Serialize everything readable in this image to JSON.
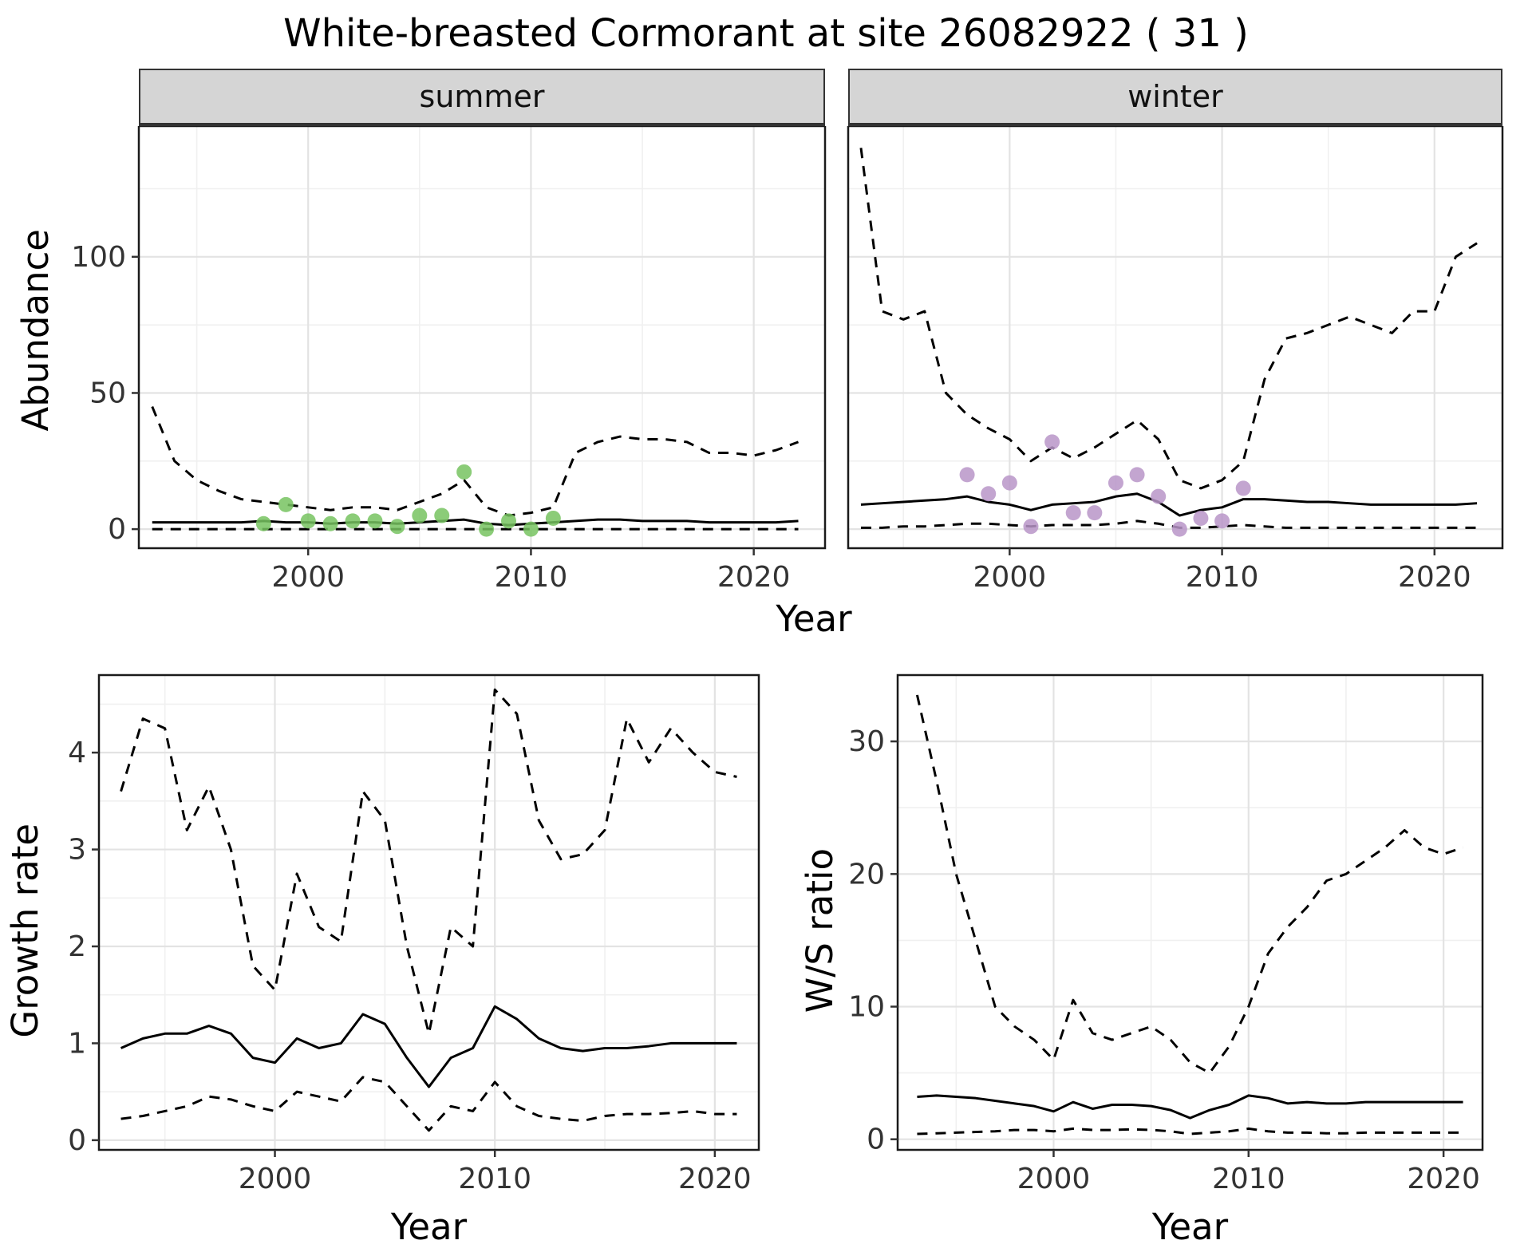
{
  "title": "White-breasted Cormorant at site 26082922 ( 31 )",
  "top": {
    "ylab": "Abundance",
    "xlab": "Year"
  },
  "colors": {
    "summer_points": "#77c360",
    "winter_points": "#b895c8",
    "line": "#000000",
    "strip_bg": "#d5d5d5"
  },
  "chart_data": [
    {
      "id": "summer",
      "type": "line",
      "facet_label": "summer",
      "xlabel": "Year",
      "ylabel": "Abundance",
      "x": [
        1993,
        1994,
        1995,
        1996,
        1997,
        1998,
        1999,
        2000,
        2001,
        2002,
        2003,
        2004,
        2005,
        2006,
        2007,
        2008,
        2009,
        2010,
        2011,
        2012,
        2013,
        2014,
        2015,
        2016,
        2017,
        2018,
        2019,
        2020,
        2021,
        2022
      ],
      "xlim": [
        1992.4,
        2023.2
      ],
      "ylim": [
        -7,
        148
      ],
      "xticks": [
        2000,
        2010,
        2020
      ],
      "yticks": [
        0,
        50,
        100
      ],
      "series": [
        {
          "name": "upper_ci",
          "style": "dashed",
          "values": [
            45,
            25,
            18,
            14,
            11,
            10,
            9,
            8,
            7,
            8,
            8,
            7,
            10,
            13,
            18,
            8,
            5,
            6,
            8,
            28,
            32,
            34,
            33,
            33,
            32,
            28,
            28,
            27,
            29,
            32
          ]
        },
        {
          "name": "median",
          "style": "solid",
          "values": [
            2.5,
            2.5,
            2.5,
            2.5,
            2.5,
            3,
            2.5,
            2.5,
            2,
            2.5,
            2.5,
            2,
            2.5,
            3,
            3.5,
            2,
            1.5,
            2,
            2.5,
            3,
            3.5,
            3.5,
            3,
            3,
            3,
            2.5,
            2.5,
            2.5,
            2.5,
            3
          ]
        },
        {
          "name": "lower_ci",
          "style": "dashed",
          "values": [
            0,
            0,
            0,
            0,
            0,
            0,
            0,
            0,
            0,
            0,
            0,
            0,
            0,
            0,
            0,
            0,
            0,
            0,
            0,
            0,
            0,
            0,
            0,
            0,
            0,
            0,
            0,
            0,
            0,
            0
          ]
        }
      ],
      "points": {
        "name": "summer_observed_counts",
        "color": "#77c360",
        "data": [
          [
            1998,
            2
          ],
          [
            1999,
            9
          ],
          [
            2000,
            3
          ],
          [
            2001,
            2
          ],
          [
            2002,
            3
          ],
          [
            2003,
            3
          ],
          [
            2004,
            1
          ],
          [
            2005,
            5
          ],
          [
            2006,
            5
          ],
          [
            2007,
            21
          ],
          [
            2008,
            0
          ],
          [
            2009,
            3
          ],
          [
            2010,
            0
          ],
          [
            2011,
            4
          ]
        ]
      }
    },
    {
      "id": "winter",
      "type": "line",
      "facet_label": "winter",
      "xlabel": "Year",
      "ylabel": "Abundance",
      "x": [
        1993,
        1994,
        1995,
        1996,
        1997,
        1998,
        1999,
        2000,
        2001,
        2002,
        2003,
        2004,
        2005,
        2006,
        2007,
        2008,
        2009,
        2010,
        2011,
        2012,
        2013,
        2014,
        2015,
        2016,
        2017,
        2018,
        2019,
        2020,
        2021,
        2022
      ],
      "xlim": [
        1992.4,
        2023.2
      ],
      "ylim": [
        -7,
        148
      ],
      "xticks": [
        2000,
        2010,
        2020
      ],
      "yticks": [
        0,
        50,
        100
      ],
      "series": [
        {
          "name": "upper_ci",
          "style": "dashed",
          "values": [
            140,
            80,
            77,
            80,
            50,
            42,
            37,
            33,
            25,
            30,
            26,
            30,
            35,
            40,
            33,
            18,
            15,
            18,
            25,
            55,
            70,
            72,
            75,
            78,
            75,
            72,
            80,
            80,
            100,
            105
          ]
        },
        {
          "name": "median",
          "style": "solid",
          "values": [
            9,
            9.5,
            10,
            10.5,
            11,
            12,
            10,
            9,
            7,
            9,
            9.5,
            10,
            12,
            13,
            10,
            5,
            7,
            8,
            11,
            11,
            10.5,
            10,
            10,
            9.5,
            9,
            9,
            9,
            9,
            9,
            9.5
          ]
        },
        {
          "name": "lower_ci",
          "style": "dashed",
          "values": [
            0.5,
            0.5,
            1,
            1,
            1.5,
            2,
            2,
            1.5,
            1,
            1.5,
            1.5,
            1.5,
            2,
            3,
            2,
            0.5,
            0.5,
            1,
            1.5,
            1,
            0.5,
            0.5,
            0.5,
            0.5,
            0.5,
            0.5,
            0.5,
            0.5,
            0.5,
            0.5
          ]
        }
      ],
      "points": {
        "name": "winter_observed_counts",
        "color": "#b895c8",
        "data": [
          [
            1998,
            20
          ],
          [
            1999,
            13
          ],
          [
            2000,
            17
          ],
          [
            2001,
            1
          ],
          [
            2002,
            32
          ],
          [
            2003,
            6
          ],
          [
            2004,
            6
          ],
          [
            2005,
            17
          ],
          [
            2006,
            20
          ],
          [
            2007,
            12
          ],
          [
            2008,
            0
          ],
          [
            2009,
            4
          ],
          [
            2010,
            3
          ],
          [
            2011,
            15
          ]
        ]
      }
    },
    {
      "id": "growth",
      "type": "line",
      "xlabel": "Year",
      "ylabel": "Growth rate",
      "x": [
        1993,
        1994,
        1995,
        1996,
        1997,
        1998,
        1999,
        2000,
        2001,
        2002,
        2003,
        2004,
        2005,
        2006,
        2007,
        2008,
        2009,
        2010,
        2011,
        2012,
        2013,
        2014,
        2015,
        2016,
        2017,
        2018,
        2019,
        2020,
        2021
      ],
      "xlim": [
        1992,
        2022
      ],
      "ylim": [
        -0.1,
        4.8
      ],
      "xticks": [
        2000,
        2010,
        2020
      ],
      "yticks": [
        0,
        1,
        2,
        3,
        4
      ],
      "series": [
        {
          "name": "upper_ci",
          "style": "dashed",
          "values": [
            3.6,
            4.35,
            4.25,
            3.2,
            3.65,
            3.0,
            1.8,
            1.55,
            2.75,
            2.2,
            2.05,
            3.6,
            3.3,
            2.0,
            1.1,
            2.2,
            2.0,
            4.65,
            4.4,
            3.3,
            2.9,
            2.95,
            3.2,
            4.35,
            3.9,
            4.25,
            4.0,
            3.8,
            3.75
          ]
        },
        {
          "name": "median",
          "style": "solid",
          "values": [
            0.95,
            1.05,
            1.1,
            1.1,
            1.18,
            1.1,
            0.85,
            0.8,
            1.05,
            0.95,
            1.0,
            1.3,
            1.2,
            0.85,
            0.55,
            0.85,
            0.95,
            1.38,
            1.25,
            1.05,
            0.95,
            0.92,
            0.95,
            0.95,
            0.97,
            1.0,
            1.0,
            1.0,
            1.0
          ]
        },
        {
          "name": "lower_ci",
          "style": "dashed",
          "values": [
            0.22,
            0.25,
            0.3,
            0.35,
            0.45,
            0.42,
            0.35,
            0.3,
            0.5,
            0.45,
            0.4,
            0.65,
            0.6,
            0.35,
            0.1,
            0.35,
            0.3,
            0.6,
            0.35,
            0.25,
            0.22,
            0.2,
            0.25,
            0.27,
            0.27,
            0.28,
            0.3,
            0.27,
            0.27
          ]
        }
      ]
    },
    {
      "id": "ws",
      "type": "line",
      "xlabel": "Year",
      "ylabel": "W/S ratio",
      "x": [
        1993,
        1994,
        1995,
        1996,
        1997,
        1998,
        1999,
        2000,
        2001,
        2002,
        2003,
        2004,
        2005,
        2006,
        2007,
        2008,
        2009,
        2010,
        2011,
        2012,
        2013,
        2014,
        2015,
        2016,
        2017,
        2018,
        2019,
        2020,
        2021
      ],
      "xlim": [
        1992,
        2022
      ],
      "ylim": [
        -0.8,
        35
      ],
      "xticks": [
        2000,
        2010,
        2020
      ],
      "yticks": [
        0,
        10,
        20,
        30
      ],
      "series": [
        {
          "name": "upper_ci",
          "style": "dashed",
          "values": [
            33.5,
            27,
            20,
            15,
            10,
            8.5,
            7.5,
            6,
            10.5,
            8,
            7.5,
            8,
            8.5,
            7.5,
            5.8,
            5,
            7,
            10,
            14,
            16,
            17.5,
            19.5,
            20,
            21,
            22,
            23.3,
            22,
            21.5,
            22
          ]
        },
        {
          "name": "median",
          "style": "solid",
          "values": [
            3.2,
            3.3,
            3.2,
            3.1,
            2.9,
            2.7,
            2.5,
            2.1,
            2.8,
            2.3,
            2.6,
            2.6,
            2.5,
            2.2,
            1.6,
            2.2,
            2.6,
            3.3,
            3.1,
            2.7,
            2.8,
            2.7,
            2.7,
            2.8,
            2.8,
            2.8,
            2.8,
            2.8,
            2.8
          ]
        },
        {
          "name": "lower_ci",
          "style": "dashed",
          "values": [
            0.4,
            0.45,
            0.5,
            0.55,
            0.6,
            0.7,
            0.7,
            0.6,
            0.8,
            0.7,
            0.7,
            0.75,
            0.7,
            0.6,
            0.4,
            0.5,
            0.6,
            0.8,
            0.6,
            0.5,
            0.5,
            0.45,
            0.45,
            0.5,
            0.5,
            0.5,
            0.5,
            0.5,
            0.5
          ]
        }
      ]
    }
  ]
}
